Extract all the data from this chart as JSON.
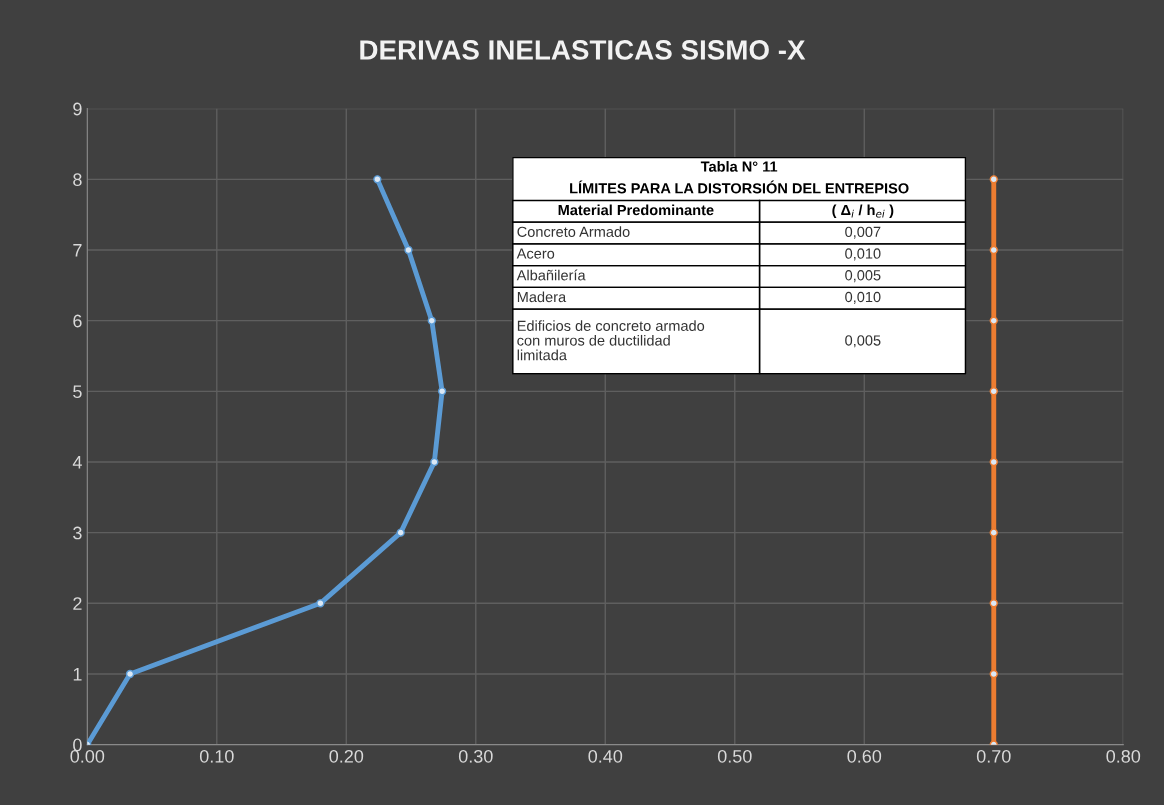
{
  "chart_data": {
    "type": "line",
    "title": "DERIVAS INELASTICAS SISMO -X",
    "series": [
      {
        "color": "#5b9bd5",
        "x": [
          0.0,
          0.033,
          0.18,
          0.242,
          0.268,
          0.274,
          0.266,
          0.248,
          0.224
        ],
        "values": [
          0,
          1,
          2,
          3,
          4,
          5,
          6,
          7,
          8
        ]
      },
      {
        "color": "#ed7d31",
        "x": [
          0.7,
          0.7,
          0.7,
          0.7,
          0.7,
          0.7,
          0.7,
          0.7,
          0.7
        ],
        "values": [
          0,
          1,
          2,
          3,
          4,
          5,
          6,
          7,
          8
        ]
      }
    ],
    "xlim": [
      0,
      0.8
    ],
    "xticks": [
      {
        "value": 0,
        "label": "0.00"
      },
      {
        "value": 0.1,
        "label": "0.10"
      },
      {
        "value": 0.2,
        "label": "0.20"
      },
      {
        "value": 0.3,
        "label": "0.30"
      },
      {
        "value": 0.4,
        "label": "0.40"
      },
      {
        "value": 0.5,
        "label": "0.50"
      },
      {
        "value": 0.6,
        "label": "0.60"
      },
      {
        "value": 0.7,
        "label": "0.70"
      },
      {
        "value": 0.8,
        "label": "0.80"
      }
    ],
    "ylim": [
      0,
      9
    ],
    "yticks": [
      0,
      1,
      2,
      3,
      4,
      5,
      6,
      7,
      8,
      9
    ],
    "grid": true,
    "marker": "circle",
    "line_style": "solid",
    "legend": false,
    "annotations": [
      "Tabla N° 11",
      "LÍMITES PARA LA DISTORSIÓN DEL ENTREPISO",
      "Material Predominante",
      "( Δ$_{i}$ / h$_{ei}$ )",
      "Concreto Armado",
      "0,007",
      "Acero",
      "0,010",
      "Albañilería",
      "0,005",
      "Madera",
      "0,010",
      "Edificios de concreto armado\ncon muros de ductilidad\nlimitada",
      "0,005"
    ]
  }
}
